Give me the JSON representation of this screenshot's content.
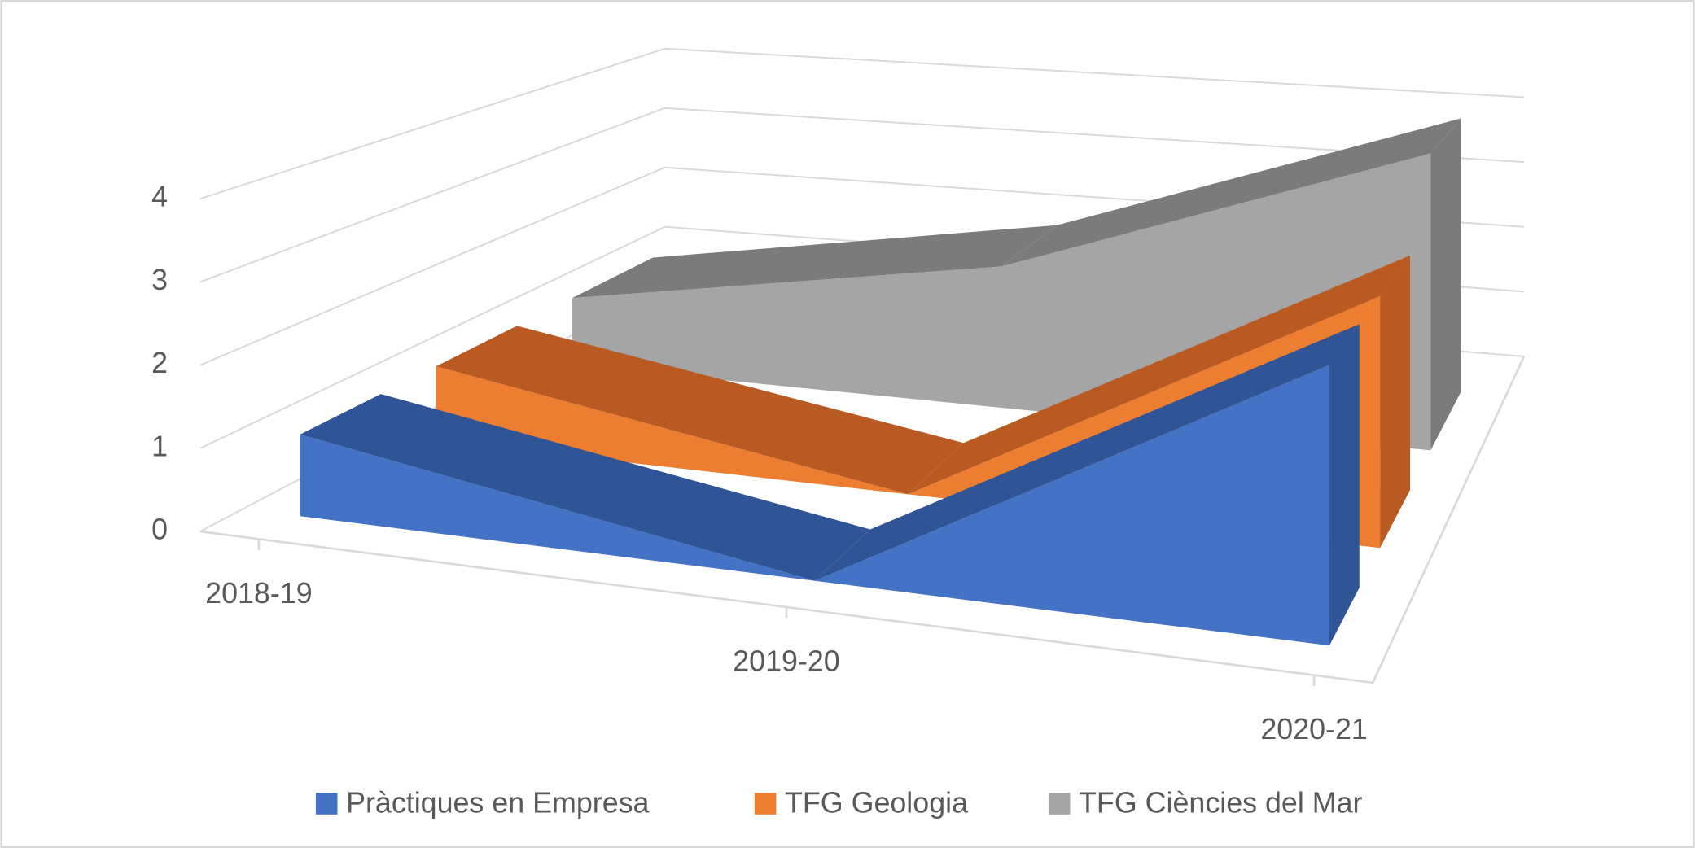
{
  "chart_data": {
    "type": "line3d",
    "categories": [
      "2018-19",
      "2019-20",
      "2020-21"
    ],
    "series": [
      {
        "name": "Pràctiques en Empresa",
        "color": "#4472c4",
        "top_color": "#2f5597",
        "values": [
          1,
          0,
          3
        ]
      },
      {
        "name": "TFG Geologia",
        "color": "#ed7d31",
        "top_color": "#b85a22",
        "values": [
          1,
          0,
          3
        ]
      },
      {
        "name": "TFG Ciències del Mar",
        "color": "#a5a5a5",
        "top_color": "#7b7b7b",
        "values": [
          1,
          2,
          4
        ]
      }
    ],
    "ylim": [
      0,
      4
    ],
    "yticks": [
      0,
      1,
      2,
      3,
      4
    ],
    "grid": true,
    "legend": "bottom"
  }
}
